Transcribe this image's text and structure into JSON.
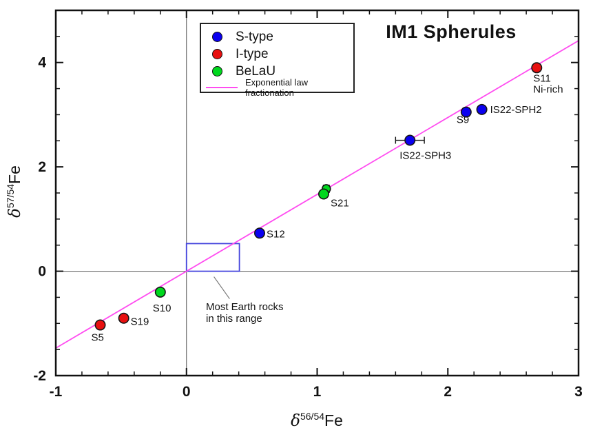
{
  "title": "IM1 Spherules",
  "legend": {
    "items": [
      {
        "swatch": "circle",
        "color": "#0a00f0",
        "label": "S-type"
      },
      {
        "swatch": "circle",
        "color": "#e81010",
        "label": "I-type"
      },
      {
        "swatch": "circle",
        "color": "#00d81e",
        "label": "BeLaU"
      },
      {
        "swatch": "line",
        "color": "#ff4cf0",
        "label": "Exponential law fractionation"
      }
    ]
  },
  "axes": {
    "x_label": {
      "delta": "δ",
      "sup": "56/54",
      "element": "Fe"
    },
    "y_label": {
      "delta": "δ",
      "sup": "57/54",
      "element": "Fe"
    }
  },
  "annotation": {
    "line1": "Most Earth rocks",
    "line2": "in this range"
  },
  "chart_data": {
    "type": "scatter",
    "title": "IM1 Spherules",
    "xlabel": "delta 56/54 Fe (per mil)",
    "ylabel": "delta 57/54 Fe (per mil)",
    "xlim": [
      -1,
      3
    ],
    "ylim": [
      -2,
      5
    ],
    "x_major_ticks": [
      -1,
      0,
      1,
      2,
      3
    ],
    "x_minor_step": 0.2,
    "y_major_ticks": [
      -2,
      0,
      2,
      4
    ],
    "y_minor_step": 0.5,
    "grid": false,
    "zero_lines": true,
    "legend_position": "upper-left",
    "fit_line": {
      "name": "Exponential law fractionation",
      "slope": 1.473,
      "intercept": 0,
      "x_start": -1,
      "x_end": 3,
      "color": "#ff4cf0"
    },
    "earth_range_box": {
      "x": [
        0,
        0.405
      ],
      "y": [
        0,
        0.53
      ],
      "color": "#4444dd",
      "label": "Most Earth rocks in this range"
    },
    "series": [
      {
        "name": "S-type",
        "color": "#0a00f0",
        "points": [
          {
            "label": "S12",
            "x": 0.56,
            "y": 0.73,
            "label_offset": [
              10,
              6
            ]
          },
          {
            "label": "IS22-SPH3",
            "x": 1.71,
            "y": 2.51,
            "xerr": 0.11,
            "yerr": 0.06,
            "label_offset": [
              -15,
              27
            ]
          },
          {
            "label": "S9",
            "x": 2.14,
            "y": 3.05,
            "yerr": 0.08,
            "label_offset": [
              -14,
              16
            ]
          },
          {
            "label": "IS22-SPH2",
            "x": 2.26,
            "y": 3.1,
            "label_offset": [
              12,
              5
            ]
          }
        ]
      },
      {
        "name": "I-type",
        "color": "#e81010",
        "points": [
          {
            "label": "S5",
            "x": -0.66,
            "y": -1.03,
            "label_offset": [
              -13,
              23
            ]
          },
          {
            "label": "S19",
            "x": -0.48,
            "y": -0.9,
            "label_offset": [
              10,
              10
            ]
          },
          {
            "label": "S11",
            "label_lines": [
              "S11",
              "Ni-rich"
            ],
            "x": 2.68,
            "y": 3.9,
            "label_offset": [
              -5,
              20
            ]
          }
        ]
      },
      {
        "name": "BeLaU",
        "color": "#00d81e",
        "points": [
          {
            "label": "",
            "x": 1.07,
            "y": 1.58,
            "yerr": 0.07,
            "r": 6,
            "label_offset": [
              0,
              0
            ]
          },
          {
            "label": "S21",
            "x": 1.05,
            "y": 1.48,
            "yerr": 0.07,
            "label_offset": [
              10,
              18
            ]
          },
          {
            "label": "S10",
            "x": -0.2,
            "y": -0.4,
            "label_offset": [
              -11,
              28
            ]
          }
        ]
      }
    ]
  }
}
